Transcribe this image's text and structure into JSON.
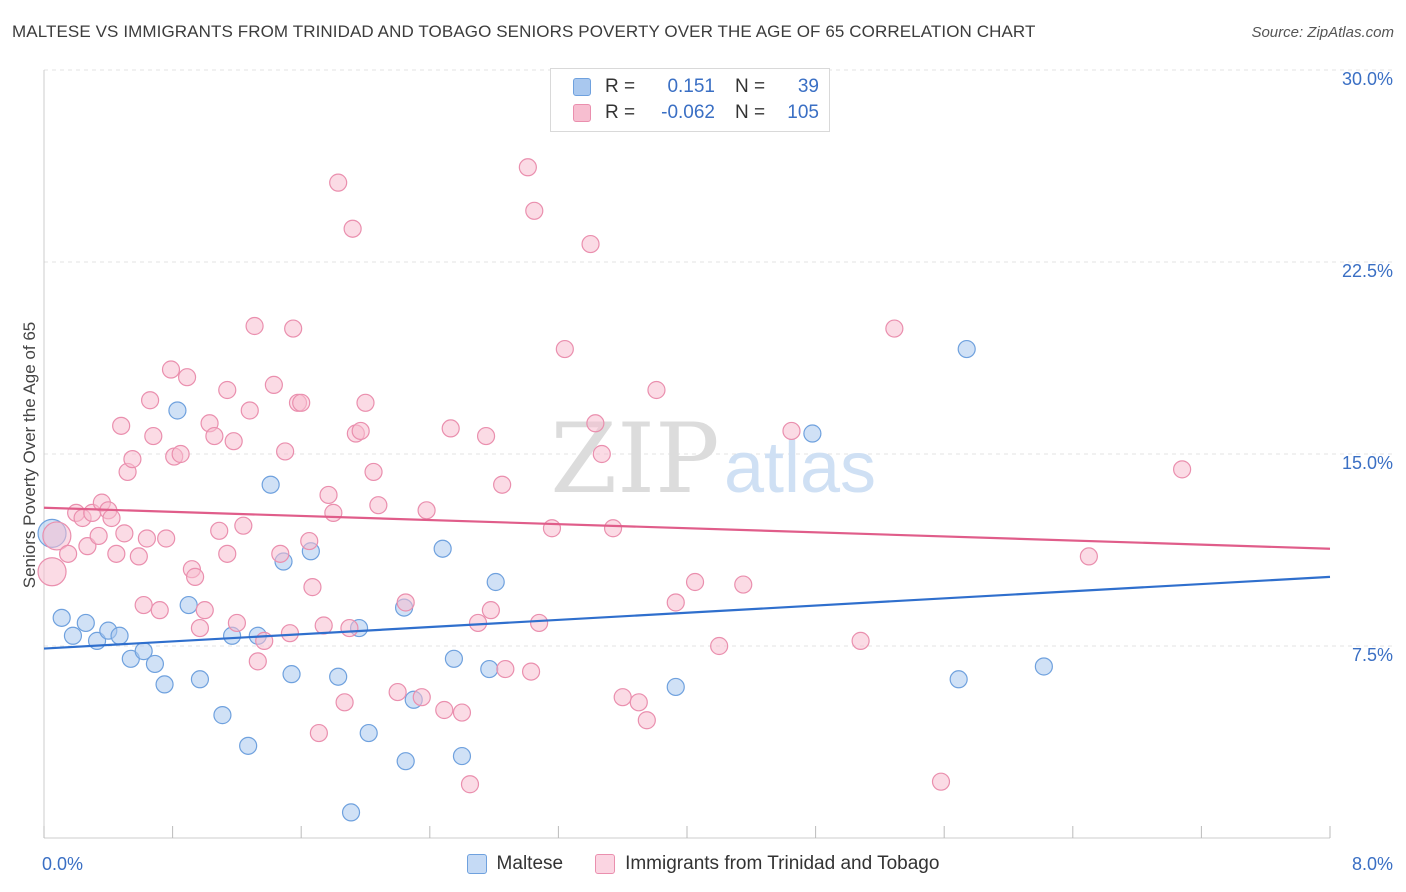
{
  "title": "MALTESE VS IMMIGRANTS FROM TRINIDAD AND TOBAGO SENIORS POVERTY OVER THE AGE OF 65 CORRELATION CHART",
  "source": "Source: ZipAtlas.com",
  "watermark": {
    "zip": "ZIP",
    "atlas": "atlas"
  },
  "legend": {
    "r_label": "R =",
    "n_label": "N =",
    "rows": [
      {
        "r": "0.151",
        "n": "39",
        "color": "#a9c8ef",
        "border": "#6fa1de"
      },
      {
        "r": "-0.062",
        "n": "105",
        "color": "#f7bed0",
        "border": "#ea8fae"
      }
    ]
  },
  "chart_data": {
    "type": "scatter",
    "title": "MALTESE VS IMMIGRANTS FROM TRINIDAD AND TOBAGO SENIORS POVERTY OVER THE AGE OF 65 CORRELATION CHART",
    "xlabel": "",
    "ylabel": "Seniors Poverty Over the Age of 65",
    "xlim": [
      0,
      8
    ],
    "ylim": [
      0,
      30
    ],
    "x_ticks": [
      0,
      0.8,
      1.6,
      2.4,
      3.2,
      4.0,
      4.8,
      5.6,
      6.4,
      7.2,
      8.0
    ],
    "x_tick_labels": {
      "0": "0.0%",
      "8": "8.0%"
    },
    "y_ticks": [
      7.5,
      15,
      22.5,
      30
    ],
    "y_tick_labels": [
      "7.5%",
      "15.0%",
      "22.5%",
      "30.0%"
    ],
    "grid": "horizontal dashed",
    "legend_position": "top-center",
    "series": [
      {
        "name": "Maltese",
        "color": "#6fa1de",
        "fill": "#a9c8ef",
        "line_color": "#2f6fcd",
        "trend": {
          "x": [
            0,
            8
          ],
          "y": [
            7.4,
            10.2
          ]
        },
        "points": [
          {
            "x": 0.05,
            "y": 11.9,
            "big": true
          },
          {
            "x": 0.11,
            "y": 8.6
          },
          {
            "x": 0.18,
            "y": 7.9
          },
          {
            "x": 0.26,
            "y": 8.4
          },
          {
            "x": 0.33,
            "y": 7.7
          },
          {
            "x": 0.4,
            "y": 8.1
          },
          {
            "x": 0.47,
            "y": 7.9
          },
          {
            "x": 0.54,
            "y": 7.0
          },
          {
            "x": 0.62,
            "y": 7.3
          },
          {
            "x": 0.69,
            "y": 6.8
          },
          {
            "x": 0.75,
            "y": 6.0
          },
          {
            "x": 0.83,
            "y": 16.7
          },
          {
            "x": 0.9,
            "y": 9.1
          },
          {
            "x": 0.97,
            "y": 6.2
          },
          {
            "x": 1.11,
            "y": 4.8
          },
          {
            "x": 1.17,
            "y": 7.9
          },
          {
            "x": 1.27,
            "y": 3.6
          },
          {
            "x": 1.33,
            "y": 7.9
          },
          {
            "x": 1.41,
            "y": 13.8
          },
          {
            "x": 1.49,
            "y": 10.8
          },
          {
            "x": 1.54,
            "y": 6.4
          },
          {
            "x": 1.66,
            "y": 11.2
          },
          {
            "x": 1.83,
            "y": 6.3
          },
          {
            "x": 1.91,
            "y": 1.0
          },
          {
            "x": 1.96,
            "y": 8.2
          },
          {
            "x": 2.02,
            "y": 4.1
          },
          {
            "x": 2.25,
            "y": 3.0
          },
          {
            "x": 2.3,
            "y": 5.4
          },
          {
            "x": 2.24,
            "y": 9.0
          },
          {
            "x": 2.48,
            "y": 11.3
          },
          {
            "x": 2.55,
            "y": 7.0
          },
          {
            "x": 2.6,
            "y": 3.2
          },
          {
            "x": 2.77,
            "y": 6.6
          },
          {
            "x": 2.81,
            "y": 10.0
          },
          {
            "x": 3.93,
            "y": 5.9
          },
          {
            "x": 4.78,
            "y": 15.8
          },
          {
            "x": 5.69,
            "y": 6.2
          },
          {
            "x": 5.74,
            "y": 19.1
          },
          {
            "x": 6.22,
            "y": 6.7
          }
        ]
      },
      {
        "name": "Immigrants from Trinidad and Tobago",
        "color": "#ea8fae",
        "fill": "#f7bed0",
        "line_color": "#e05d8a",
        "trend": {
          "x": [
            0,
            8
          ],
          "y": [
            12.9,
            11.3
          ]
        },
        "points": [
          {
            "x": 0.05,
            "y": 10.4,
            "big": true
          },
          {
            "x": 0.08,
            "y": 11.8,
            "big": true
          },
          {
            "x": 0.15,
            "y": 11.1
          },
          {
            "x": 0.2,
            "y": 12.7
          },
          {
            "x": 0.24,
            "y": 12.5
          },
          {
            "x": 0.27,
            "y": 11.4
          },
          {
            "x": 0.3,
            "y": 12.7
          },
          {
            "x": 0.34,
            "y": 11.8
          },
          {
            "x": 0.36,
            "y": 13.1
          },
          {
            "x": 0.4,
            "y": 12.8
          },
          {
            "x": 0.42,
            "y": 12.5
          },
          {
            "x": 0.45,
            "y": 11.1
          },
          {
            "x": 0.48,
            "y": 16.1
          },
          {
            "x": 0.5,
            "y": 11.9
          },
          {
            "x": 0.52,
            "y": 14.3
          },
          {
            "x": 0.55,
            "y": 14.8
          },
          {
            "x": 0.59,
            "y": 11.0
          },
          {
            "x": 0.62,
            "y": 9.1
          },
          {
            "x": 0.64,
            "y": 11.7
          },
          {
            "x": 0.66,
            "y": 17.1
          },
          {
            "x": 0.68,
            "y": 15.7
          },
          {
            "x": 0.72,
            "y": 8.9
          },
          {
            "x": 0.76,
            "y": 11.7
          },
          {
            "x": 0.79,
            "y": 18.3
          },
          {
            "x": 0.81,
            "y": 14.9
          },
          {
            "x": 0.85,
            "y": 15.0
          },
          {
            "x": 0.89,
            "y": 18.0
          },
          {
            "x": 0.92,
            "y": 10.5
          },
          {
            "x": 0.94,
            "y": 10.2
          },
          {
            "x": 0.97,
            "y": 8.2
          },
          {
            "x": 1.0,
            "y": 8.9
          },
          {
            "x": 1.03,
            "y": 16.2
          },
          {
            "x": 1.06,
            "y": 15.7
          },
          {
            "x": 1.09,
            "y": 12.0
          },
          {
            "x": 1.14,
            "y": 17.5
          },
          {
            "x": 1.14,
            "y": 11.1
          },
          {
            "x": 1.18,
            "y": 15.5
          },
          {
            "x": 1.2,
            "y": 8.4
          },
          {
            "x": 1.24,
            "y": 12.2
          },
          {
            "x": 1.28,
            "y": 16.7
          },
          {
            "x": 1.31,
            "y": 20.0
          },
          {
            "x": 1.33,
            "y": 6.9
          },
          {
            "x": 1.37,
            "y": 7.7
          },
          {
            "x": 1.43,
            "y": 17.7
          },
          {
            "x": 1.47,
            "y": 11.1
          },
          {
            "x": 1.5,
            "y": 15.1
          },
          {
            "x": 1.53,
            "y": 8.0
          },
          {
            "x": 1.55,
            "y": 19.9
          },
          {
            "x": 1.58,
            "y": 17.0
          },
          {
            "x": 1.6,
            "y": 17.0
          },
          {
            "x": 1.65,
            "y": 11.6
          },
          {
            "x": 1.67,
            "y": 9.8
          },
          {
            "x": 1.71,
            "y": 4.1
          },
          {
            "x": 1.74,
            "y": 8.3
          },
          {
            "x": 1.77,
            "y": 13.4
          },
          {
            "x": 1.8,
            "y": 12.7
          },
          {
            "x": 1.83,
            "y": 25.6
          },
          {
            "x": 1.87,
            "y": 5.3
          },
          {
            "x": 1.9,
            "y": 8.2
          },
          {
            "x": 1.92,
            "y": 23.8
          },
          {
            "x": 1.94,
            "y": 15.8
          },
          {
            "x": 1.97,
            "y": 15.9
          },
          {
            "x": 2.0,
            "y": 17.0
          },
          {
            "x": 2.05,
            "y": 14.3
          },
          {
            "x": 2.08,
            "y": 13.0
          },
          {
            "x": 2.2,
            "y": 5.7
          },
          {
            "x": 2.25,
            "y": 9.2
          },
          {
            "x": 2.35,
            "y": 5.5
          },
          {
            "x": 2.38,
            "y": 12.8
          },
          {
            "x": 2.49,
            "y": 5.0
          },
          {
            "x": 2.53,
            "y": 16.0
          },
          {
            "x": 2.6,
            "y": 4.9
          },
          {
            "x": 2.65,
            "y": 2.1
          },
          {
            "x": 2.7,
            "y": 8.4
          },
          {
            "x": 2.75,
            "y": 15.7
          },
          {
            "x": 2.78,
            "y": 8.9
          },
          {
            "x": 2.85,
            "y": 13.8
          },
          {
            "x": 2.87,
            "y": 6.6
          },
          {
            "x": 3.01,
            "y": 26.2
          },
          {
            "x": 3.03,
            "y": 6.5
          },
          {
            "x": 3.05,
            "y": 24.5
          },
          {
            "x": 3.08,
            "y": 8.4
          },
          {
            "x": 3.16,
            "y": 12.1
          },
          {
            "x": 3.24,
            "y": 19.1
          },
          {
            "x": 3.4,
            "y": 23.2
          },
          {
            "x": 3.43,
            "y": 16.2
          },
          {
            "x": 3.47,
            "y": 15.0
          },
          {
            "x": 3.54,
            "y": 12.1
          },
          {
            "x": 3.6,
            "y": 5.5
          },
          {
            "x": 3.7,
            "y": 5.3
          },
          {
            "x": 3.75,
            "y": 4.6
          },
          {
            "x": 3.81,
            "y": 17.5
          },
          {
            "x": 3.93,
            "y": 9.2
          },
          {
            "x": 4.05,
            "y": 10.0
          },
          {
            "x": 4.2,
            "y": 7.5
          },
          {
            "x": 4.35,
            "y": 9.9
          },
          {
            "x": 4.65,
            "y": 15.9
          },
          {
            "x": 5.08,
            "y": 7.7
          },
          {
            "x": 5.29,
            "y": 19.9
          },
          {
            "x": 5.58,
            "y": 2.2
          },
          {
            "x": 6.5,
            "y": 11.0
          },
          {
            "x": 7.08,
            "y": 14.4
          }
        ]
      }
    ]
  }
}
